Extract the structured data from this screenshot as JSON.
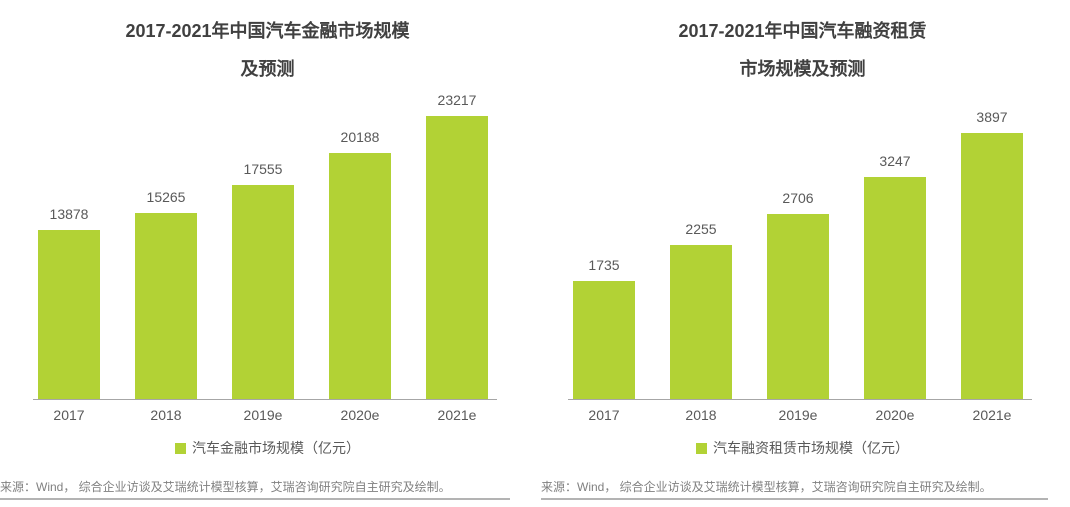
{
  "colors": {
    "bar": "#b2d235",
    "title": "#404040",
    "label": "#595959",
    "axis": "#a6a6a6",
    "source_text": "#808080",
    "source_rule": "#b3b3b3",
    "background": "#ffffff"
  },
  "chart_data": [
    {
      "type": "bar",
      "title": "2017-2021年中国汽车金融市场规模及预测",
      "title_lines": [
        "2017-2021年中国汽车金融市场规模",
        "及预测"
      ],
      "categories": [
        "2017",
        "2018",
        "2019e",
        "2020e",
        "2021e"
      ],
      "values": [
        13878,
        15265,
        17555,
        20188,
        23217
      ],
      "legend": "汽车金融市场规模（亿元）",
      "unit": "亿元",
      "ylim": [
        0,
        23217
      ],
      "grid": false,
      "legend_position": "bottom",
      "source": "来源：Wind， 综合企业访谈及艾瑞统计模型核算，艾瑞咨询研究院自主研究及绘制。"
    },
    {
      "type": "bar",
      "title": "2017-2021年中国汽车融资租赁市场规模及预测",
      "title_lines": [
        "2017-2021年中国汽车融资租赁",
        "市场规模及预测"
      ],
      "categories": [
        "2017",
        "2018",
        "2019e",
        "2020e",
        "2021e"
      ],
      "values": [
        1735,
        2255,
        2706,
        3247,
        3897
      ],
      "legend": "汽车融资租赁市场规模（亿元）",
      "unit": "亿元",
      "ylim": [
        0,
        3897
      ],
      "grid": false,
      "legend_position": "bottom",
      "source": "来源：Wind， 综合企业访谈及艾瑞统计模型核算，艾瑞咨询研究院自主研究及绘制。"
    }
  ]
}
